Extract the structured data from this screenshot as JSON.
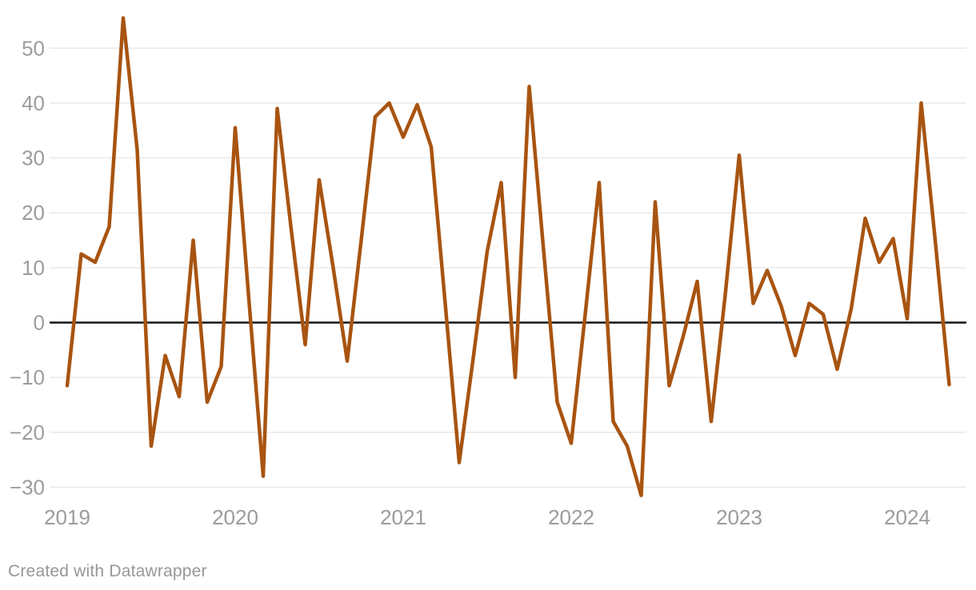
{
  "chart_data": {
    "type": "line",
    "title": "",
    "xlabel": "",
    "ylabel": "",
    "legend": "none",
    "grid": "horizontal-only",
    "x": [
      "2019-01",
      "2019-02",
      "2019-03",
      "2019-04",
      "2019-05",
      "2019-06",
      "2019-07",
      "2019-08",
      "2019-09",
      "2019-10",
      "2019-11",
      "2019-12",
      "2020-01",
      "2020-02",
      "2020-03",
      "2020-04",
      "2020-05",
      "2020-06",
      "2020-07",
      "2020-08",
      "2020-09",
      "2020-10",
      "2020-11",
      "2020-12",
      "2021-01",
      "2021-02",
      "2021-03",
      "2021-04",
      "2021-05",
      "2021-06",
      "2021-07",
      "2021-08",
      "2021-09",
      "2021-10",
      "2021-11",
      "2021-12",
      "2022-01",
      "2022-02",
      "2022-03",
      "2022-04",
      "2022-05",
      "2022-06",
      "2022-07",
      "2022-08",
      "2022-09",
      "2022-10",
      "2022-11",
      "2022-12",
      "2023-01",
      "2023-02",
      "2023-03",
      "2023-04",
      "2023-05",
      "2023-06",
      "2023-07",
      "2023-08",
      "2023-09",
      "2023-10",
      "2023-11",
      "2023-12",
      "2024-01",
      "2024-02",
      "2024-03",
      "2024-04"
    ],
    "series": [
      {
        "name": "value",
        "values": [
          -11.5,
          12.5,
          11,
          17.5,
          55.5,
          31.5,
          -22.5,
          -6,
          -13.5,
          15,
          -14.5,
          -8,
          35.5,
          3.5,
          -28,
          39,
          17,
          -4,
          26,
          10,
          -7,
          15,
          37.5,
          40,
          33.8,
          39.7,
          32,
          3.5,
          -25.5,
          -6.5,
          13,
          25.5,
          -10,
          43,
          14,
          -14.5,
          -22,
          1.5,
          25.5,
          -18,
          -22.5,
          -31.5,
          22,
          -11.5,
          -2.5,
          7.5,
          -18,
          5,
          30.5,
          3.5,
          9.5,
          3,
          -6,
          3.5,
          1.5,
          -8.5,
          2.5,
          19,
          11,
          15.3,
          0.7,
          40,
          15,
          -11.3
        ]
      }
    ],
    "x_tick_labels": [
      "2019",
      "2020",
      "2021",
      "2022",
      "2023",
      "2024"
    ],
    "y_ticks": [
      50,
      40,
      30,
      20,
      10,
      0,
      -10,
      -20,
      -30
    ],
    "ylim": [
      -35,
      57
    ],
    "line_color": "#a85411",
    "zero_line_color": "#161616",
    "grid_color": "#e9e9e9",
    "tick_label_color": "#9c9c9c"
  },
  "footer": {
    "credit": "Created with Datawrapper"
  }
}
